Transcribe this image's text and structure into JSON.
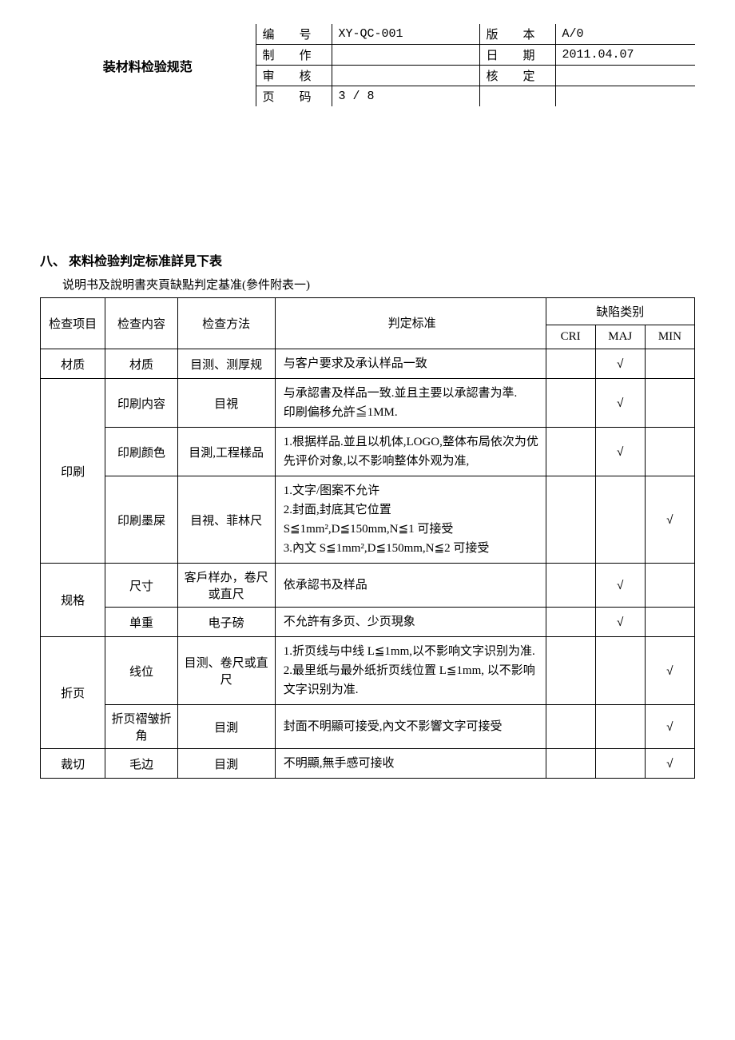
{
  "header": {
    "title": "装材料检验规范",
    "rows": [
      {
        "l1": "编　号",
        "v1": "XY-QC-001",
        "l2": "版　本",
        "v2": "A/0"
      },
      {
        "l1": "制　作",
        "v1": "",
        "l2": "日　期",
        "v2": "2011.04.07"
      },
      {
        "l1": "审　核",
        "v1": "",
        "l2": "核　定",
        "v2": ""
      },
      {
        "l1": "页　码",
        "v1": "3 / 8",
        "l2": "",
        "v2": ""
      }
    ]
  },
  "section_heading": "八、 來料检验判定标准詳見下表",
  "sub_heading": "说明书及說明書夾頁缺點判定基准(參件附表一)",
  "columns": {
    "item": "检查项目",
    "content": "检查内容",
    "method": "检查方法",
    "standard": "判定标准",
    "defect_group": "缺陷类别",
    "cri": "CRI",
    "maj": "MAJ",
    "min": "MIN"
  },
  "rows": [
    {
      "item": "材质",
      "content": "材质",
      "method": "目测、测厚规",
      "standard": "与客户要求及承认样品一致",
      "cri": "",
      "maj": "√",
      "min": "",
      "item_rowspan": 1
    },
    {
      "item": "印刷",
      "content": "印刷内容",
      "method": "目視",
      "standard": "与承認書及样品一致.並且主要以承認書为準.\n印刷偏移允許≦1MM.",
      "cri": "",
      "maj": "√",
      "min": "",
      "item_rowspan": 3
    },
    {
      "content": "印刷颜色",
      "method": "目測,工程樣品",
      "standard": "1.根据样品.並且以机体,LOGO,整体布局依次为优先评价对象,以不影响整体外观为准,",
      "cri": "",
      "maj": "√",
      "min": ""
    },
    {
      "content": "印刷墨屎",
      "method": "目視、菲林尺",
      "standard": "1.文字/图案不允许\n2.封面,封底其它位置\nS≦1mm²,D≦150mm,N≦1 可接受\n3.內文 S≦1mm²,D≦150mm,N≦2 可接受",
      "cri": "",
      "maj": "",
      "min": "√"
    },
    {
      "item": "规格",
      "content": "尺寸",
      "method": "客戶样办，卷尺或直尺",
      "standard": "依承認书及样品",
      "cri": "",
      "maj": "√",
      "min": "",
      "item_rowspan": 2
    },
    {
      "content": "单重",
      "method": "电子磅",
      "standard": "不允許有多页、少页現象",
      "cri": "",
      "maj": "√",
      "min": ""
    },
    {
      "item": "折页",
      "content": "线位",
      "method": "目测、卷尺或直尺",
      "standard": "1.折页线与中线 L≦1mm,以不影响文字识别为准.\n2.最里纸与最外纸折页线位置 L≦1mm, 以不影响文字识别为准.",
      "cri": "",
      "maj": "",
      "min": "√",
      "item_rowspan": 2
    },
    {
      "content": "折页褶皱折角",
      "method": "目測",
      "standard": "封面不明顯可接受,內文不影響文字可接受",
      "cri": "",
      "maj": "",
      "min": "√"
    },
    {
      "item": "裁切",
      "content": "毛边",
      "method": "目測",
      "standard": "不明顯,無手感可接收",
      "cri": "",
      "maj": "",
      "min": "√",
      "item_rowspan": 1
    }
  ]
}
